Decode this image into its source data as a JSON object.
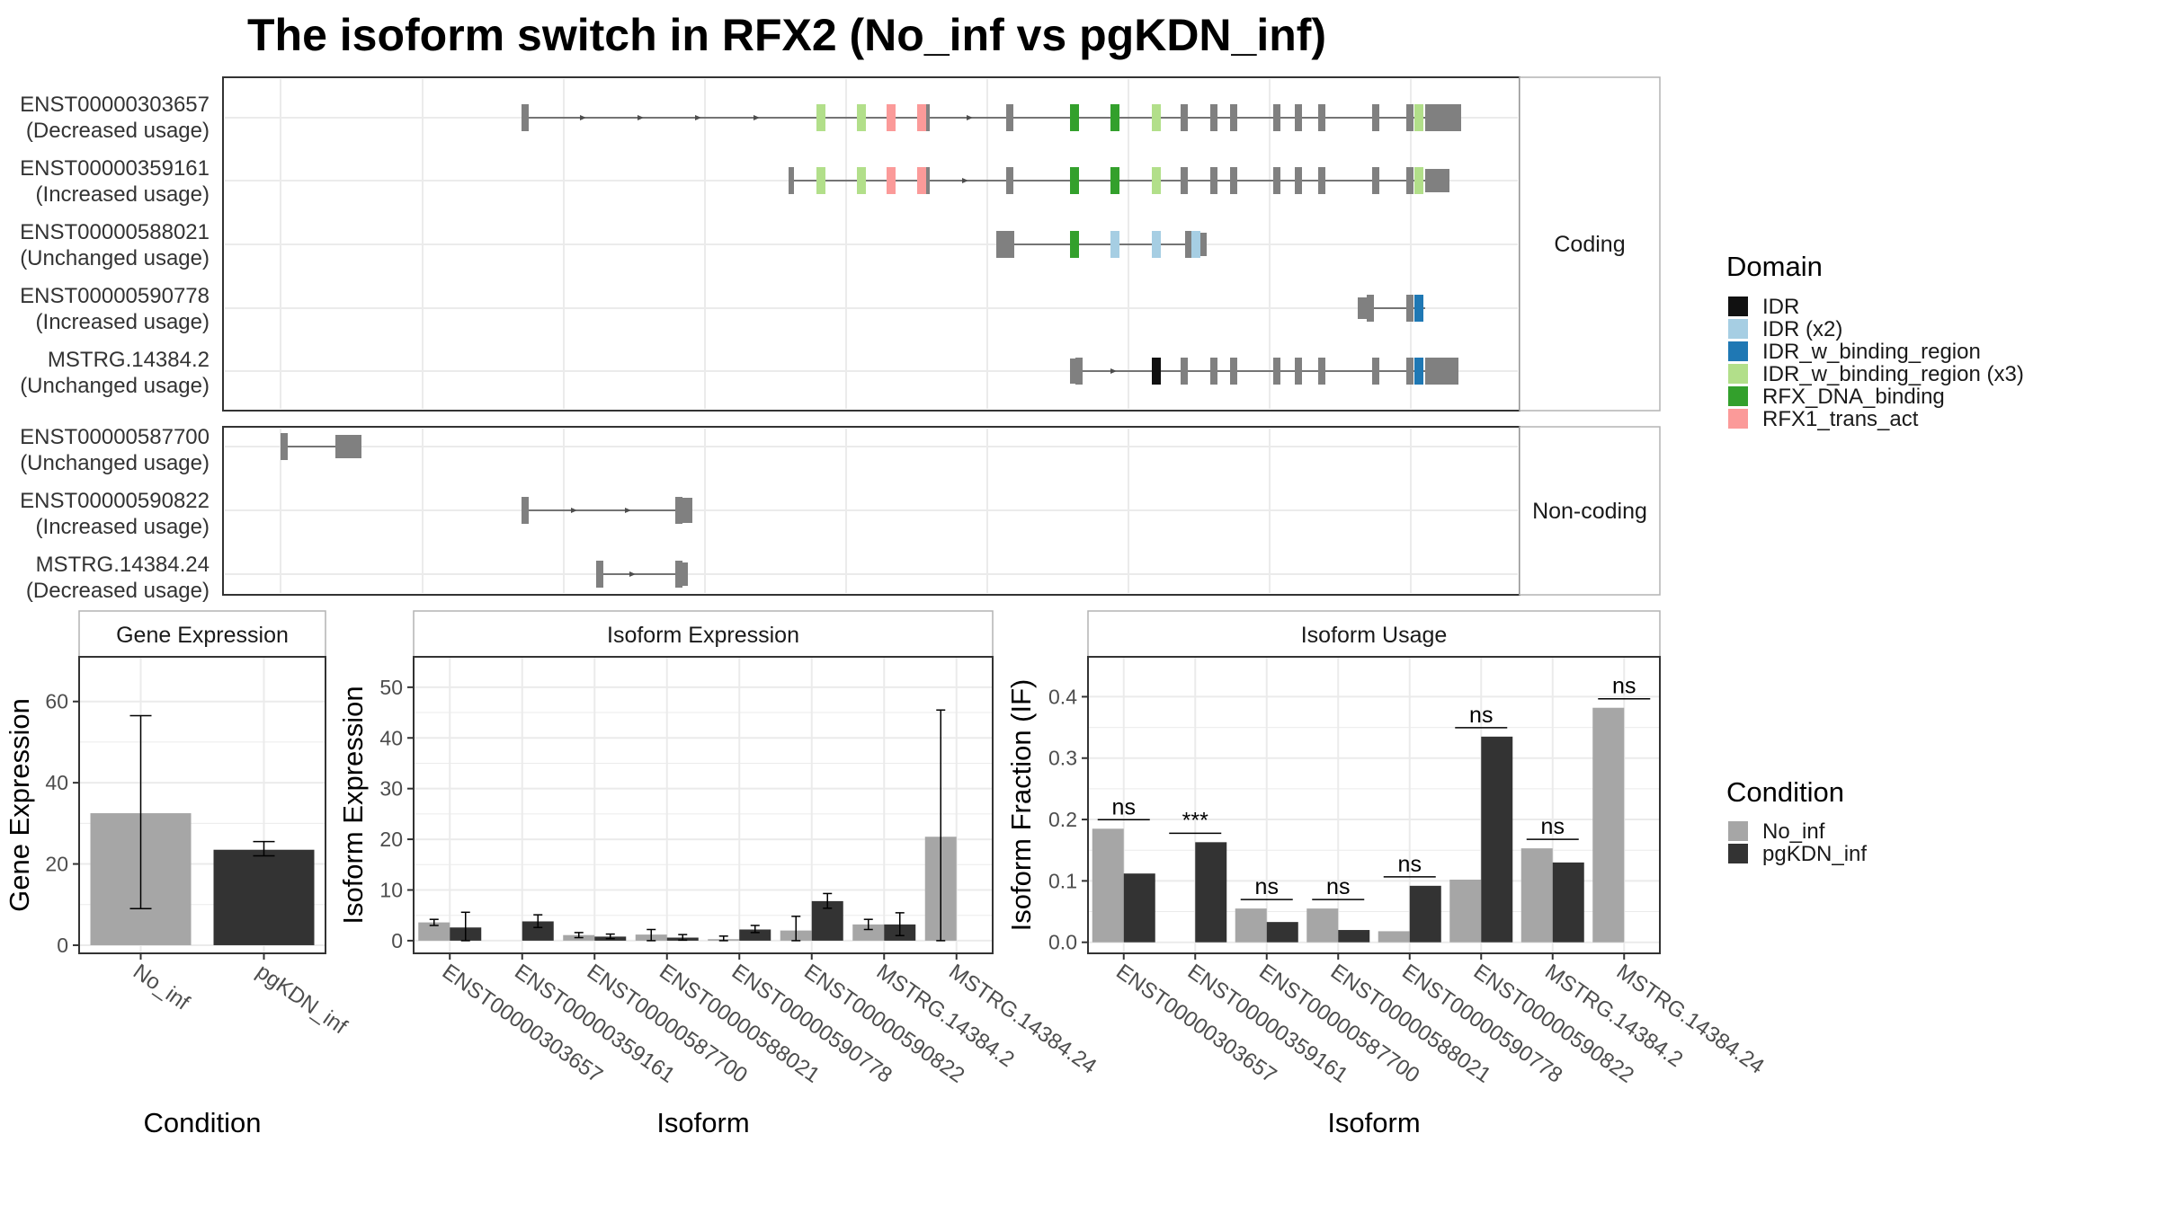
{
  "figure": {
    "title": "The isoform switch in RFX2 (No_inf vs pgKDN_inf)"
  },
  "colors": {
    "No_inf": "#a6a6a6",
    "pgKDN_inf": "#333333",
    "exon": "#808080",
    "intron": "#4d4d4d",
    "grid": "#ebebeb",
    "border": "#333333",
    "strip_fill": "#ffffff",
    "strip_border": "#b3b3b3"
  },
  "domain_legend": {
    "title": "Domain",
    "items": [
      {
        "label": "IDR",
        "color": "#111111"
      },
      {
        "label": "IDR (x2)",
        "color": "#a6cee3"
      },
      {
        "label": "IDR_w_binding_region",
        "color": "#1f78b4"
      },
      {
        "label": "IDR_w_binding_region (x3)",
        "color": "#b2df8a"
      },
      {
        "label": "RFX_DNA_binding",
        "color": "#33a02c"
      },
      {
        "label": "RFX1_trans_act",
        "color": "#fb9a99"
      }
    ]
  },
  "condition_legend": {
    "title": "Condition",
    "items": [
      {
        "label": "No_inf",
        "color": "#a6a6a6"
      },
      {
        "label": "pgKDN_inf",
        "color": "#333333"
      }
    ]
  },
  "isoform_panels": {
    "coding_label": "Coding",
    "noncoding_label": "Non-coding",
    "coding": [
      {
        "id": "ENST00000303657",
        "usage": "(Decreased usage)"
      },
      {
        "id": "ENST00000359161",
        "usage": "(Increased usage)"
      },
      {
        "id": "ENST00000588021",
        "usage": "(Unchanged usage)"
      },
      {
        "id": "ENST00000590778",
        "usage": "(Increased usage)"
      },
      {
        "id": "MSTRG.14384.2",
        "usage": "(Unchanged usage)"
      }
    ],
    "noncoding": [
      {
        "id": "ENST00000587700",
        "usage": "(Unchanged usage)"
      },
      {
        "id": "ENST00000590822",
        "usage": "(Increased usage)"
      },
      {
        "id": "MSTRG.14384.24",
        "usage": "(Decreased usage)"
      }
    ]
  },
  "chart_data": [
    {
      "type": "bar",
      "panel": "Gene Expression",
      "xlabel": "Condition",
      "ylabel": "Gene Expression",
      "categories": [
        "No_inf",
        "pgKDN_inf"
      ],
      "values": [
        32.5,
        23.5
      ],
      "error": [
        [
          9,
          56.5
        ],
        [
          22,
          25.5
        ]
      ],
      "ylim": [
        -2,
        71
      ],
      "yticks": [
        0,
        20,
        40,
        60
      ]
    },
    {
      "type": "bar",
      "panel": "Isoform Expression",
      "xlabel": "Isoform",
      "ylabel": "Isoform Expression",
      "categories": [
        "ENST00000303657",
        "ENST00000359161",
        "ENST00000587700",
        "ENST00000588021",
        "ENST00000590778",
        "ENST00000590822",
        "MSTRG.14384.2",
        "MSTRG.14384.24"
      ],
      "series": [
        {
          "name": "No_inf",
          "values": [
            3.6,
            0,
            1.1,
            1.2,
            0.3,
            2.0,
            3.2,
            20.5
          ],
          "error": [
            [
              3.0,
              4.2
            ],
            null,
            [
              0.6,
              1.6
            ],
            [
              0,
              2.2
            ],
            [
              0,
              0.9
            ],
            [
              0,
              4.8
            ],
            [
              2.2,
              4.2
            ],
            [
              0,
              45.5
            ]
          ]
        },
        {
          "name": "pgKDN_inf",
          "values": [
            2.6,
            3.8,
            0.8,
            0.6,
            2.2,
            7.8,
            3.2,
            0
          ],
          "error": [
            [
              0,
              5.6
            ],
            [
              2.6,
              5.1
            ],
            [
              0.4,
              1.3
            ],
            [
              0.1,
              1.2
            ],
            [
              1.6,
              3.0
            ],
            [
              6.4,
              9.3
            ],
            [
              1.0,
              5.5
            ],
            null
          ]
        }
      ],
      "ylim": [
        -2.5,
        56
      ],
      "yticks": [
        0,
        10,
        20,
        30,
        40,
        50
      ]
    },
    {
      "type": "bar",
      "panel": "Isoform Usage",
      "xlabel": "Isoform",
      "ylabel": "Isoform Fraction (IF)",
      "categories": [
        "ENST00000303657",
        "ENST00000359161",
        "ENST00000587700",
        "ENST00000588021",
        "ENST00000590778",
        "ENST00000590822",
        "MSTRG.14384.2",
        "MSTRG.14384.24"
      ],
      "series": [
        {
          "name": "No_inf",
          "values": [
            0.185,
            0.0,
            0.055,
            0.055,
            0.018,
            0.102,
            0.153,
            0.382
          ]
        },
        {
          "name": "pgKDN_inf",
          "values": [
            0.112,
            0.163,
            0.033,
            0.02,
            0.092,
            0.335,
            0.13,
            0.0
          ]
        }
      ],
      "significance": [
        "ns",
        "***",
        "ns",
        "ns",
        "ns",
        "ns",
        "ns",
        "ns"
      ],
      "ylim": [
        -0.018,
        0.465
      ],
      "yticks": [
        0.0,
        0.1,
        0.2,
        0.3,
        0.4
      ]
    }
  ]
}
